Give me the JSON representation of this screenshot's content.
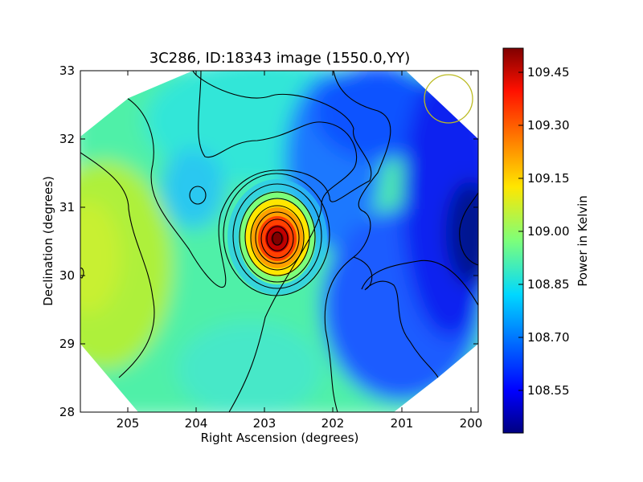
{
  "chart_data": {
    "type": "heatmap",
    "title": "3C286, ID:18343 image (1550.0,YY)",
    "xlabel": "Right Ascension (degrees)",
    "ylabel": "Declination (degrees)",
    "xlim": [
      205.7,
      199.85
    ],
    "ylim": [
      28.0,
      33.05
    ],
    "x_ticks": [
      "205",
      "204",
      "203",
      "202",
      "201",
      "200"
    ],
    "x_tick_values": [
      205,
      204,
      203,
      202,
      201,
      200
    ],
    "y_ticks": [
      "28",
      "29",
      "30",
      "31",
      "32",
      "33"
    ],
    "y_tick_values": [
      28,
      29,
      30,
      31,
      32,
      33
    ],
    "colorbar": {
      "label": "Power in Kelvin",
      "range": [
        108.43,
        109.52
      ],
      "ticks": [
        "108.55",
        "108.70",
        "108.85",
        "109.00",
        "109.15",
        "109.30",
        "109.45"
      ],
      "tick_values": [
        108.55,
        108.7,
        108.85,
        109.0,
        109.15,
        109.3,
        109.45
      ],
      "colormap": "jet"
    },
    "peak": {
      "ra": 202.75,
      "dec": 30.55,
      "value": 109.5
    },
    "minimum": {
      "ra": 199.9,
      "dec": 30.6,
      "value": 108.44
    },
    "beam_circle": {
      "ra": 200.3,
      "dec": 32.6,
      "color": "#bbbb22"
    },
    "contour_levels": [
      108.45,
      108.6,
      108.75,
      108.9,
      109.0,
      109.1,
      109.2,
      109.3,
      109.4,
      109.47
    ],
    "grid": false
  }
}
